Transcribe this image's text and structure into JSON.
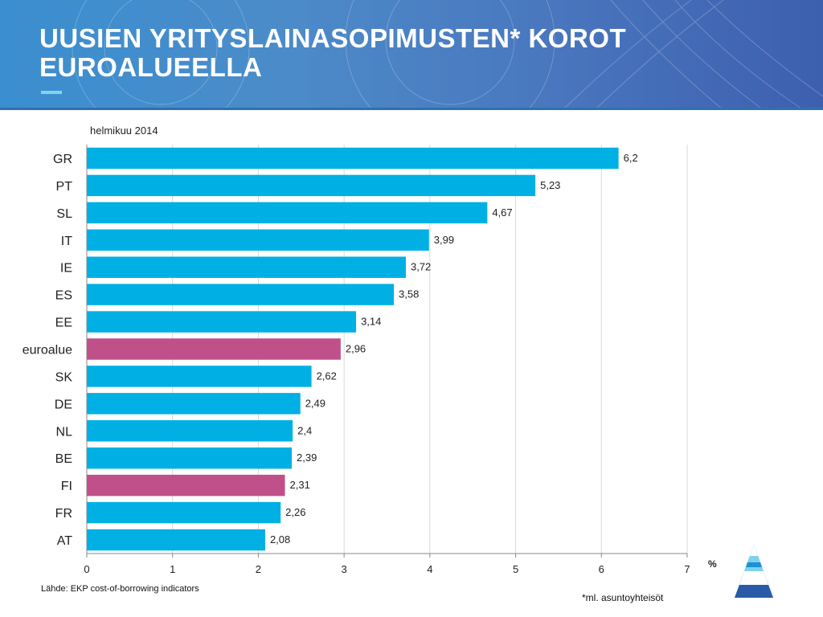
{
  "slide": {
    "title_line1": "UUSIEN YRITYSLAINASOPIMUSTEN* KOROT",
    "title_line2": "EUROALUEELLA",
    "source": "Lähde: EKP cost-of-borrowing indicators",
    "footnote": "*ml. asuntoyhteisöt"
  },
  "colors": {
    "bar": "#00b0e4",
    "highlight": "#c0508a"
  },
  "chart_data": {
    "type": "bar",
    "orientation": "horizontal",
    "subtitle": "helmikuu 2014",
    "unit_label": "%",
    "categories": [
      "GR",
      "PT",
      "SL",
      "IT",
      "IE",
      "ES",
      "EE",
      "euroalue",
      "SK",
      "DE",
      "NL",
      "BE",
      "FI",
      "FR",
      "AT"
    ],
    "values": [
      6.2,
      5.23,
      4.67,
      3.99,
      3.72,
      3.58,
      3.14,
      2.96,
      2.62,
      2.49,
      2.4,
      2.39,
      2.31,
      2.26,
      2.08
    ],
    "value_labels": [
      "6,2",
      "5,23",
      "4,67",
      "3,99",
      "3,72",
      "3,58",
      "3,14",
      "2,96",
      "2,62",
      "2,49",
      "2,4",
      "2,39",
      "2,31",
      "2,26",
      "2,08"
    ],
    "highlighted": [
      "euroalue",
      "FI"
    ],
    "xlim": [
      0,
      7
    ],
    "xticks": [
      0,
      1,
      2,
      3,
      4,
      5,
      6,
      7
    ],
    "grid": "vertical"
  }
}
